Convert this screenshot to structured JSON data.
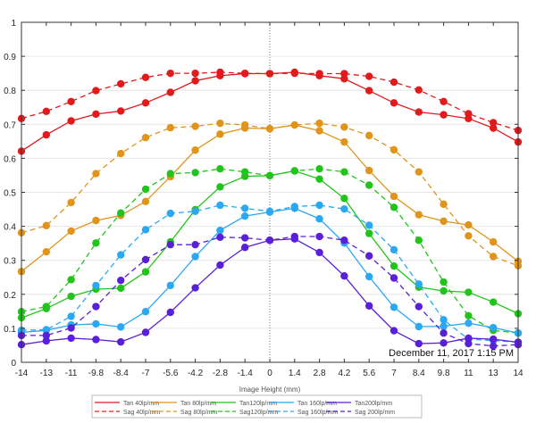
{
  "chart_data": {
    "type": "line",
    "title": "",
    "xlabel": "Image Height (mm)",
    "ylabel": "",
    "xlim": [
      -14,
      14
    ],
    "ylim": [
      0,
      1
    ],
    "grid": "horizontal",
    "x": [
      -14,
      -12.6,
      -11.2,
      -9.8,
      -8.4,
      -7,
      -5.6,
      -4.2,
      -2.8,
      -1.4,
      0,
      1.4,
      2.8,
      4.2,
      5.6,
      7,
      8.4,
      9.8,
      11.2,
      12.6,
      14
    ],
    "x_ticks": [
      -14,
      -12.6,
      -11.2,
      -9.8,
      -8.4,
      -7,
      -5.6,
      -4.2,
      -2.8,
      -1.4,
      0,
      1.4,
      2.8,
      4.2,
      5.6,
      7,
      8.4,
      9.8,
      11.2,
      12.6,
      14
    ],
    "x_tick_labels": [
      "-14",
      "-13",
      "-11",
      "-9.8",
      "-8.4",
      "-7",
      "-5.6",
      "-4.2",
      "-2.8",
      "-1.4",
      "0",
      "1.4",
      "2.8",
      "4.2",
      "5.6",
      "7",
      "8.4",
      "9.8",
      "11",
      "13",
      "14"
    ],
    "y_ticks": [
      0,
      0.1,
      0.2,
      0.3,
      0.4,
      0.5,
      0.6,
      0.7,
      0.8,
      0.9,
      1
    ],
    "y_tick_labels": [
      "0",
      "0.1",
      "0.2",
      "0.3",
      "0.4",
      "0.5",
      "0.6",
      "0.7",
      "0.8",
      "0.9",
      "1"
    ],
    "annotation": "December 11, 2017  1:15 PM",
    "legend_placement": "bottom",
    "series": [
      {
        "name": "Tan 40lp/mm",
        "color": "#e31a1c",
        "dash": false,
        "values": [
          0.621,
          0.669,
          0.71,
          0.73,
          0.739,
          0.763,
          0.794,
          0.828,
          0.843,
          0.849,
          0.849,
          0.853,
          0.843,
          0.834,
          0.799,
          0.763,
          0.736,
          0.728,
          0.717,
          0.689,
          0.648
        ]
      },
      {
        "name": "Sag 40lp/mm",
        "color": "#e31a1c",
        "dash": true,
        "values": [
          0.717,
          0.738,
          0.767,
          0.799,
          0.819,
          0.838,
          0.85,
          0.85,
          0.853,
          0.85,
          0.849,
          0.85,
          0.849,
          0.849,
          0.841,
          0.824,
          0.801,
          0.767,
          0.731,
          0.705,
          0.682
        ]
      },
      {
        "name": "Tan 80lp/mm",
        "color": "#e09419",
        "dash": false,
        "values": [
          0.267,
          0.325,
          0.386,
          0.417,
          0.432,
          0.473,
          0.546,
          0.624,
          0.671,
          0.689,
          0.687,
          0.698,
          0.681,
          0.648,
          0.564,
          0.488,
          0.434,
          0.415,
          0.404,
          0.354,
          0.297
        ]
      },
      {
        "name": "Sag 80lp/mm",
        "color": "#e09419",
        "dash": true,
        "values": [
          0.381,
          0.402,
          0.47,
          0.555,
          0.614,
          0.661,
          0.69,
          0.694,
          0.703,
          0.698,
          0.687,
          0.698,
          0.703,
          0.692,
          0.667,
          0.625,
          0.56,
          0.465,
          0.372,
          0.311,
          0.284
        ]
      },
      {
        "name": "Tan120lp/mm",
        "color": "#22c41c",
        "dash": false,
        "values": [
          0.131,
          0.158,
          0.194,
          0.215,
          0.218,
          0.266,
          0.354,
          0.449,
          0.516,
          0.547,
          0.549,
          0.563,
          0.539,
          0.482,
          0.379,
          0.283,
          0.221,
          0.21,
          0.206,
          0.177,
          0.143
        ]
      },
      {
        "name": "Sag120lp/mm",
        "color": "#22c41c",
        "dash": true,
        "values": [
          0.149,
          0.164,
          0.243,
          0.351,
          0.439,
          0.509,
          0.555,
          0.558,
          0.569,
          0.56,
          0.549,
          0.563,
          0.569,
          0.56,
          0.521,
          0.456,
          0.359,
          0.236,
          0.137,
          0.094,
          0.086
        ]
      },
      {
        "name": "Tan 160lp/mm",
        "color": "#2aa8f2",
        "dash": false,
        "values": [
          0.088,
          0.094,
          0.11,
          0.113,
          0.104,
          0.149,
          0.226,
          0.311,
          0.388,
          0.43,
          0.442,
          0.453,
          0.422,
          0.351,
          0.252,
          0.162,
          0.105,
          0.106,
          0.115,
          0.102,
          0.086
        ]
      },
      {
        "name": "Sag 160lp/mm",
        "color": "#2aa8f2",
        "dash": true,
        "values": [
          0.094,
          0.096,
          0.135,
          0.226,
          0.316,
          0.39,
          0.438,
          0.444,
          0.462,
          0.453,
          0.444,
          0.458,
          0.462,
          0.451,
          0.403,
          0.331,
          0.23,
          0.125,
          0.068,
          0.064,
          0.059
        ]
      },
      {
        "name": "Tan200lp/mm",
        "color": "#5a1fd8",
        "dash": false,
        "values": [
          0.052,
          0.063,
          0.071,
          0.067,
          0.06,
          0.088,
          0.147,
          0.219,
          0.286,
          0.338,
          0.359,
          0.363,
          0.323,
          0.254,
          0.166,
          0.093,
          0.055,
          0.057,
          0.071,
          0.068,
          0.059
        ]
      },
      {
        "name": "Sag 200lp/mm",
        "color": "#5a1fd8",
        "dash": true,
        "values": [
          0.079,
          0.079,
          0.101,
          0.164,
          0.241,
          0.302,
          0.346,
          0.346,
          0.368,
          0.366,
          0.359,
          0.37,
          0.37,
          0.359,
          0.313,
          0.248,
          0.164,
          0.086,
          0.055,
          0.048,
          0.052
        ]
      }
    ]
  }
}
